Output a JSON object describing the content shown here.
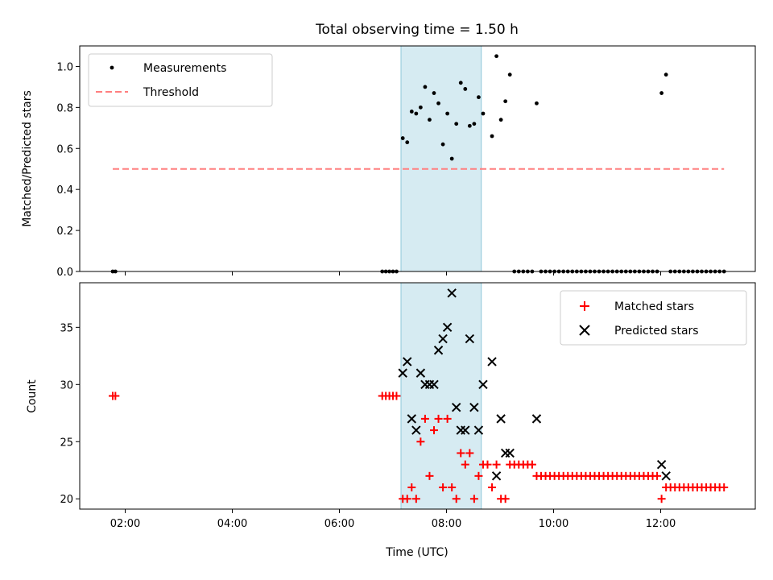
{
  "colors": {
    "measurement": "#000000",
    "threshold": "#ff7f7f",
    "matched": "#ff0000",
    "predicted": "#000000",
    "span": "#add8e6"
  },
  "chart_data": [
    {
      "type": "scatter",
      "title": "Total observing time = 1.50 h",
      "xlabel": "",
      "ylabel": "Matched/Predicted stars",
      "ylim": [
        0,
        1.1
      ],
      "yticks": [
        "0.0",
        "0.2",
        "0.4",
        "0.6",
        "0.8",
        "1.0"
      ],
      "xlim": [
        "01:09",
        "13:46"
      ],
      "shaded_span": [
        "07:09",
        "08:39"
      ],
      "legend": {
        "placement": "upper left",
        "entries": [
          "Measurements",
          "Threshold"
        ]
      },
      "series": [
        {
          "name": "Measurements",
          "marker": "dot",
          "points": [
            [
              "01:46",
              0
            ],
            [
              "01:49",
              0
            ],
            [
              "06:48",
              0
            ],
            [
              "06:52",
              0
            ],
            [
              "06:56",
              0
            ],
            [
              "07:00",
              0
            ],
            [
              "07:04",
              0
            ],
            [
              "07:11",
              0.65
            ],
            [
              "07:16",
              0.63
            ],
            [
              "07:21",
              0.78
            ],
            [
              "07:26",
              0.77
            ],
            [
              "07:31",
              0.8
            ],
            [
              "07:36",
              0.9
            ],
            [
              "07:41",
              0.74
            ],
            [
              "07:46",
              0.87
            ],
            [
              "07:51",
              0.82
            ],
            [
              "07:56",
              0.62
            ],
            [
              "08:01",
              0.77
            ],
            [
              "08:06",
              0.55
            ],
            [
              "08:11",
              0.72
            ],
            [
              "08:16",
              0.92
            ],
            [
              "08:21",
              0.89
            ],
            [
              "08:26",
              0.71
            ],
            [
              "08:31",
              0.72
            ],
            [
              "08:36",
              0.85
            ],
            [
              "08:41",
              0.77
            ],
            [
              "08:51",
              0.66
            ],
            [
              "08:56",
              1.05
            ],
            [
              "09:01",
              0.74
            ],
            [
              "09:06",
              0.83
            ],
            [
              "09:11",
              0.96
            ],
            [
              "09:41",
              0.82
            ],
            [
              "12:01",
              0.87
            ],
            [
              "12:06",
              0.96
            ],
            [
              "09:16",
              0
            ],
            [
              "09:21",
              0
            ],
            [
              "09:26",
              0
            ],
            [
              "09:31",
              0
            ],
            [
              "09:36",
              0
            ],
            [
              "09:46",
              0
            ],
            [
              "09:51",
              0
            ],
            [
              "09:56",
              0
            ],
            [
              "10:01",
              0
            ],
            [
              "10:06",
              0
            ],
            [
              "10:11",
              0
            ],
            [
              "10:16",
              0
            ],
            [
              "10:21",
              0
            ],
            [
              "10:26",
              0
            ],
            [
              "10:31",
              0
            ],
            [
              "10:36",
              0
            ],
            [
              "10:41",
              0
            ],
            [
              "10:46",
              0
            ],
            [
              "10:51",
              0
            ],
            [
              "10:56",
              0
            ],
            [
              "11:01",
              0
            ],
            [
              "11:06",
              0
            ],
            [
              "11:11",
              0
            ],
            [
              "11:16",
              0
            ],
            [
              "11:21",
              0
            ],
            [
              "11:26",
              0
            ],
            [
              "11:31",
              0
            ],
            [
              "11:36",
              0
            ],
            [
              "11:41",
              0
            ],
            [
              "11:46",
              0
            ],
            [
              "11:51",
              0
            ],
            [
              "11:56",
              0
            ],
            [
              "12:11",
              0
            ],
            [
              "12:16",
              0
            ],
            [
              "12:21",
              0
            ],
            [
              "12:26",
              0
            ],
            [
              "12:31",
              0
            ],
            [
              "12:36",
              0
            ],
            [
              "12:41",
              0
            ],
            [
              "12:46",
              0
            ],
            [
              "12:51",
              0
            ],
            [
              "12:56",
              0
            ],
            [
              "13:01",
              0
            ],
            [
              "13:06",
              0
            ],
            [
              "13:11",
              0
            ]
          ]
        },
        {
          "name": "Threshold",
          "marker": "dashed-line",
          "x": [
            "01:46",
            "13:11"
          ],
          "y": [
            0.5,
            0.5
          ]
        }
      ]
    },
    {
      "type": "scatter",
      "title": "",
      "xlabel": "Time (UTC)",
      "ylabel": "Count",
      "ylim": [
        19.1,
        38.9
      ],
      "yticks": [
        "20",
        "25",
        "30",
        "35"
      ],
      "xticks": [
        "02:00",
        "04:00",
        "06:00",
        "08:00",
        "10:00",
        "12:00"
      ],
      "xlim": [
        "01:09",
        "13:46"
      ],
      "shaded_span": [
        "07:09",
        "08:39"
      ],
      "legend": {
        "placement": "upper right",
        "entries": [
          "Matched stars",
          "Predicted stars"
        ]
      },
      "series": [
        {
          "name": "Matched stars",
          "marker": "plus",
          "points": [
            [
              "01:46",
              29
            ],
            [
              "01:49",
              29
            ],
            [
              "06:48",
              29
            ],
            [
              "06:52",
              29
            ],
            [
              "06:56",
              29
            ],
            [
              "07:00",
              29
            ],
            [
              "07:04",
              29
            ],
            [
              "07:11",
              20
            ],
            [
              "07:16",
              20
            ],
            [
              "07:21",
              21
            ],
            [
              "07:26",
              20
            ],
            [
              "07:31",
              25
            ],
            [
              "07:36",
              27
            ],
            [
              "07:41",
              22
            ],
            [
              "07:46",
              26
            ],
            [
              "07:51",
              27
            ],
            [
              "07:56",
              21
            ],
            [
              "08:01",
              27
            ],
            [
              "08:06",
              21
            ],
            [
              "08:11",
              20
            ],
            [
              "08:16",
              24
            ],
            [
              "08:21",
              23
            ],
            [
              "08:26",
              24
            ],
            [
              "08:31",
              20
            ],
            [
              "08:36",
              22
            ],
            [
              "08:41",
              23
            ],
            [
              "08:46",
              23
            ],
            [
              "08:51",
              21
            ],
            [
              "08:56",
              23
            ],
            [
              "09:01",
              20
            ],
            [
              "09:06",
              20
            ],
            [
              "09:11",
              23
            ],
            [
              "09:16",
              23
            ],
            [
              "09:21",
              23
            ],
            [
              "09:26",
              23
            ],
            [
              "09:31",
              23
            ],
            [
              "09:36",
              23
            ],
            [
              "09:41",
              22
            ],
            [
              "09:46",
              22
            ],
            [
              "09:51",
              22
            ],
            [
              "09:56",
              22
            ],
            [
              "10:01",
              22
            ],
            [
              "10:06",
              22
            ],
            [
              "10:11",
              22
            ],
            [
              "10:16",
              22
            ],
            [
              "10:21",
              22
            ],
            [
              "10:26",
              22
            ],
            [
              "10:31",
              22
            ],
            [
              "10:36",
              22
            ],
            [
              "10:41",
              22
            ],
            [
              "10:46",
              22
            ],
            [
              "10:51",
              22
            ],
            [
              "10:56",
              22
            ],
            [
              "11:01",
              22
            ],
            [
              "11:06",
              22
            ],
            [
              "11:11",
              22
            ],
            [
              "11:16",
              22
            ],
            [
              "11:21",
              22
            ],
            [
              "11:26",
              22
            ],
            [
              "11:31",
              22
            ],
            [
              "11:36",
              22
            ],
            [
              "11:41",
              22
            ],
            [
              "11:46",
              22
            ],
            [
              "11:51",
              22
            ],
            [
              "11:56",
              22
            ],
            [
              "12:01",
              20
            ],
            [
              "12:06",
              21
            ],
            [
              "12:11",
              21
            ],
            [
              "12:16",
              21
            ],
            [
              "12:21",
              21
            ],
            [
              "12:26",
              21
            ],
            [
              "12:31",
              21
            ],
            [
              "12:36",
              21
            ],
            [
              "12:41",
              21
            ],
            [
              "12:46",
              21
            ],
            [
              "12:51",
              21
            ],
            [
              "12:56",
              21
            ],
            [
              "13:01",
              21
            ],
            [
              "13:06",
              21
            ],
            [
              "13:11",
              21
            ]
          ]
        },
        {
          "name": "Predicted stars",
          "marker": "x",
          "points": [
            [
              "07:11",
              31
            ],
            [
              "07:16",
              32
            ],
            [
              "07:21",
              27
            ],
            [
              "07:26",
              26
            ],
            [
              "07:31",
              31
            ],
            [
              "07:36",
              30
            ],
            [
              "07:41",
              30
            ],
            [
              "07:46",
              30
            ],
            [
              "07:51",
              33
            ],
            [
              "07:56",
              34
            ],
            [
              "08:01",
              35
            ],
            [
              "08:06",
              38
            ],
            [
              "08:11",
              28
            ],
            [
              "08:16",
              26
            ],
            [
              "08:21",
              26
            ],
            [
              "08:26",
              34
            ],
            [
              "08:31",
              28
            ],
            [
              "08:36",
              26
            ],
            [
              "08:41",
              30
            ],
            [
              "08:51",
              32
            ],
            [
              "08:56",
              22
            ],
            [
              "09:01",
              27
            ],
            [
              "09:06",
              24
            ],
            [
              "09:11",
              24
            ],
            [
              "09:41",
              27
            ],
            [
              "12:01",
              23
            ],
            [
              "12:06",
              22
            ]
          ]
        }
      ]
    }
  ]
}
